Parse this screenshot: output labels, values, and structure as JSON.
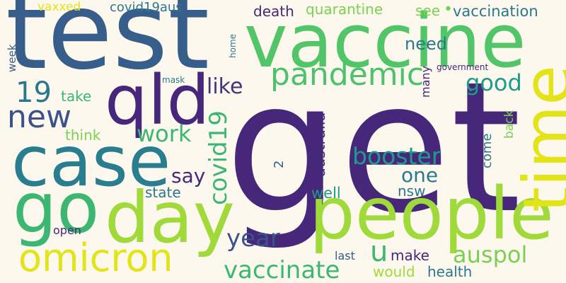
{
  "background_color": "#fdf8ee",
  "words": [
    {
      "text": "get",
      "color": "#46277a"
    },
    {
      "text": "test",
      "color": "#375d8a"
    },
    {
      "text": "vaccine",
      "color": "#52c569"
    },
    {
      "text": "people",
      "color": "#a0da3a"
    },
    {
      "text": "case",
      "color": "#287d8e"
    },
    {
      "text": "day",
      "color": "#a0da3a"
    },
    {
      "text": "go",
      "color": "#3cb772"
    },
    {
      "text": "qld",
      "color": "#46277a"
    },
    {
      "text": "time",
      "color": "#e2e418"
    },
    {
      "text": "omicron",
      "color": "#e2e418"
    },
    {
      "text": "pandemic",
      "color": "#4cc26c"
    },
    {
      "text": "new",
      "color": "#3b528b"
    },
    {
      "text": "19",
      "color": "#2a788e"
    },
    {
      "text": "vaccinate",
      "color": "#3cb772"
    },
    {
      "text": "booster",
      "color": "#1f9a8a"
    },
    {
      "text": "covid19",
      "color": "#3cb772"
    },
    {
      "text": "year",
      "color": "#3b528b"
    },
    {
      "text": "work",
      "color": "#3cb772"
    },
    {
      "text": "auspol",
      "color": "#7ad151"
    },
    {
      "text": "like",
      "color": "#46337e"
    },
    {
      "text": "good",
      "color": "#1f9a8a"
    },
    {
      "text": "one",
      "color": "#2a788e"
    },
    {
      "text": "u",
      "color": "#3cb772"
    },
    {
      "text": "say",
      "color": "#46277a"
    },
    {
      "text": "need",
      "color": "#2a788e"
    },
    {
      "text": "vaccination",
      "color": "#2a788e"
    },
    {
      "text": "australia",
      "color": "#46277a"
    },
    {
      "text": "quarantine",
      "color": "#7ad151"
    },
    {
      "text": "death",
      "color": "#46277a"
    },
    {
      "text": "covid19aus",
      "color": "#2a788e"
    },
    {
      "text": "health",
      "color": "#2a788e"
    },
    {
      "text": "make",
      "color": "#46277a"
    },
    {
      "text": "would",
      "color": "#a0da3a"
    },
    {
      "text": "take",
      "color": "#3cb772"
    },
    {
      "text": "think",
      "color": "#7ad151"
    },
    {
      "text": "state",
      "color": "#2a788e"
    },
    {
      "text": "well",
      "color": "#1f9a8a"
    },
    {
      "text": "nsw",
      "color": "#2a788e"
    },
    {
      "text": "come",
      "color": "#2a788e"
    },
    {
      "text": "back",
      "color": "#7ad151"
    },
    {
      "text": "see",
      "color": "#7ad151"
    },
    {
      "text": "vaxxed",
      "color": "#e2e418"
    },
    {
      "text": "open",
      "color": "#46277a"
    },
    {
      "text": "last",
      "color": "#375d8a"
    },
    {
      "text": "many",
      "color": "#46277a"
    },
    {
      "text": "government",
      "color": "#46277a"
    },
    {
      "text": "week",
      "color": "#375d8a"
    },
    {
      "text": "home",
      "color": "#2a788e"
    },
    {
      "text": "mask",
      "color": "#2a788e"
    },
    {
      "text": "2",
      "color": "#375d8a"
    },
    {
      "text": "•",
      "color": "#7ad151"
    },
    {
      "text": "•",
      "color": "#1f9a8a"
    }
  ]
}
